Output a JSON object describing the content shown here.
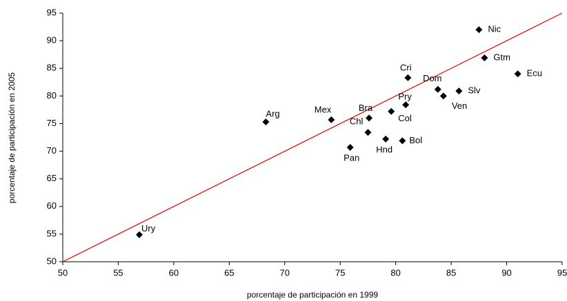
{
  "chart_data": {
    "type": "scatter",
    "x_label": "porcentaje de participación en 1999",
    "y_label": "porcentaje de participación en 2005",
    "xlim": [
      50,
      95
    ],
    "xticks": [
      50,
      55,
      60,
      65,
      70,
      75,
      80,
      85,
      90,
      95
    ],
    "ylim": [
      50,
      95
    ],
    "yticks": [
      50,
      55,
      60,
      65,
      70,
      75,
      80,
      85,
      90,
      95
    ],
    "series": [
      {
        "color": "#000000",
        "labels": [
          "Ury",
          "Arg",
          "Mex",
          "Bra",
          "Chl",
          "Pan",
          "Hnd",
          "Bol",
          "Col",
          "Pry",
          "Cri",
          "Dom",
          "Ven",
          "Slv",
          "Nic",
          "Gtm",
          "Ecu"
        ],
        "x": [
          56.9,
          68.3,
          74.2,
          77.6,
          77.5,
          75.9,
          79.1,
          80.6,
          79.6,
          80.9,
          81.1,
          83.8,
          84.3,
          85.7,
          87.5,
          88.0,
          91.0
        ],
        "y": [
          54.9,
          75.3,
          75.7,
          76.0,
          73.4,
          70.7,
          72.2,
          71.9,
          77.2,
          78.4,
          83.3,
          81.2,
          80.0,
          80.9,
          92.0,
          86.9,
          84.0
        ]
      }
    ],
    "reference_line": {
      "x": [
        50,
        95
      ],
      "y": [
        50,
        95
      ],
      "color": "#e00000"
    }
  }
}
